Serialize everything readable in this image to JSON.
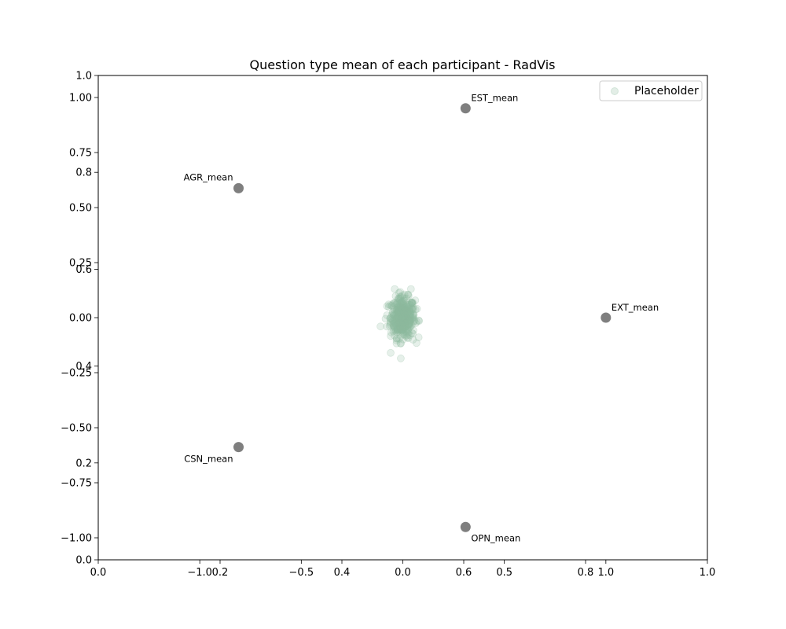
{
  "chart_data": {
    "type": "scatter",
    "title": "Question type mean of each participant - RadVis",
    "xlabel": "",
    "ylabel": "",
    "grid": false,
    "legend": {
      "location": "upper right",
      "entries": [
        "Placeholder"
      ]
    },
    "axes": {
      "outer": {
        "xlim": [
          0,
          1
        ],
        "ylim": [
          0,
          1
        ],
        "xticks": [
          0.0,
          0.2,
          0.4,
          0.6,
          0.8,
          1.0
        ],
        "xtick_labels": [
          "0.0",
          "0.2",
          "0.4",
          "0.6",
          "0.8",
          "1.0"
        ],
        "yticks": [
          0.0,
          0.2,
          0.4,
          0.6,
          0.8,
          1.0
        ],
        "ytick_labels": [
          "0.0",
          "0.2",
          "0.4",
          "0.6",
          "0.8",
          "1.0"
        ]
      },
      "radviz": {
        "xlim": [
          -1.5,
          1.5
        ],
        "ylim": [
          -1.1,
          1.1
        ],
        "xticks": [
          -1.0,
          -0.5,
          0.0,
          0.5,
          1.0
        ],
        "xtick_labels": [
          "−1.0",
          "−0.5",
          "0.0",
          "0.5",
          "1.0"
        ],
        "yticks": [
          -1.0,
          -0.75,
          -0.5,
          -0.25,
          0.0,
          0.25,
          0.5,
          0.75,
          1.0
        ],
        "ytick_labels": [
          "−1.00",
          "−0.75",
          "−0.50",
          "−0.25",
          "0.00",
          "0.25",
          "0.50",
          "0.75",
          "1.00"
        ]
      }
    },
    "anchors": [
      {
        "label": "EXT_mean",
        "x": 1.0,
        "y": 0.0
      },
      {
        "label": "EST_mean",
        "x": 0.309,
        "y": 0.951
      },
      {
        "label": "AGR_mean",
        "x": -0.809,
        "y": 0.588
      },
      {
        "label": "CSN_mean",
        "x": -0.809,
        "y": -0.588
      },
      {
        "label": "OPN_mean",
        "x": 0.309,
        "y": -0.951
      }
    ],
    "series": [
      {
        "name": "Placeholder",
        "color": "#8fbc9f",
        "n_points": 420,
        "center": [
          0.0,
          0.0
        ],
        "spread": [
          0.03,
          0.045
        ],
        "extremes": [
          {
            "x": -0.11,
            "y": -0.04
          },
          {
            "x": -0.06,
            "y": -0.16
          },
          {
            "x": -0.01,
            "y": -0.185
          },
          {
            "x": 0.08,
            "y": -0.015
          },
          {
            "x": 0.04,
            "y": 0.13
          },
          {
            "x": -0.04,
            "y": 0.13
          },
          {
            "x": -0.085,
            "y": -0.005
          },
          {
            "x": 0.07,
            "y": 0.04
          },
          {
            "x": 0.05,
            "y": -0.1
          },
          {
            "x": -0.07,
            "y": 0.06
          }
        ]
      }
    ],
    "colors": {
      "anchor": "#7f7f7f",
      "axes": "#000000",
      "scatter": "#8fbc9f"
    }
  }
}
